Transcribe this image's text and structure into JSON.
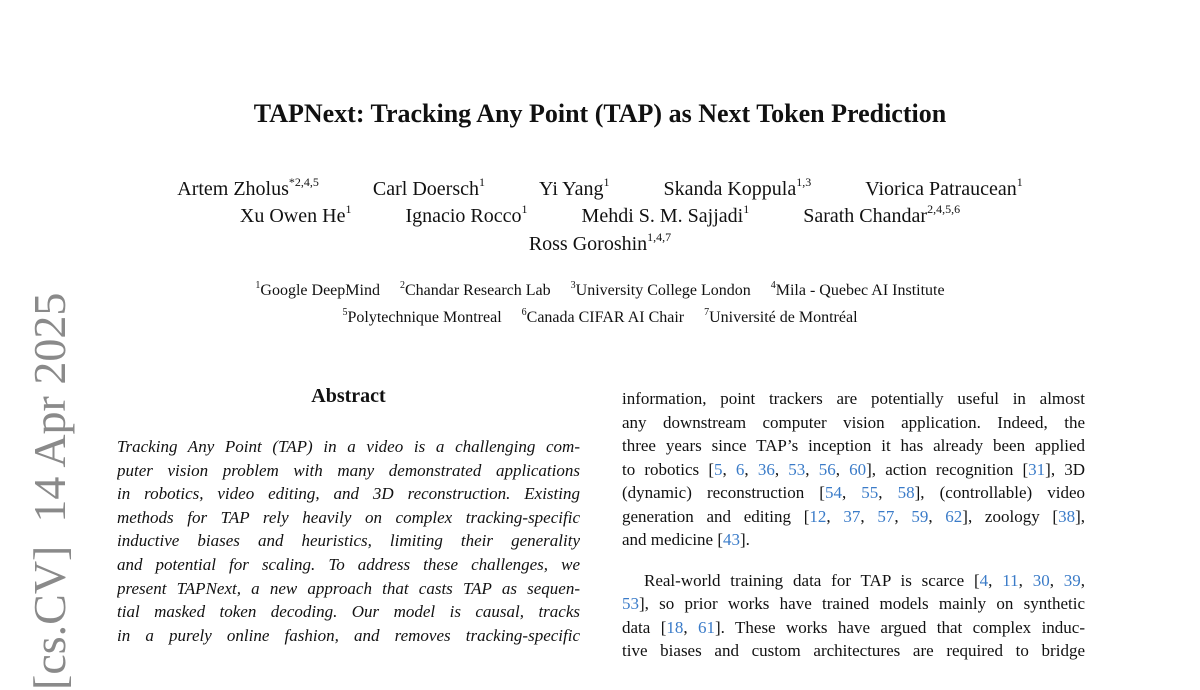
{
  "title": "TAPNext: Tracking Any Point (TAP) as Next Token Prediction",
  "authors": [
    [
      {
        "name": "Artem Zholus",
        "sup": "*2,4,5"
      },
      {
        "name": "Carl Doersch",
        "sup": "1"
      },
      {
        "name": "Yi Yang",
        "sup": "1"
      },
      {
        "name": "Skanda Koppula",
        "sup": "1,3"
      },
      {
        "name": "Viorica Patraucean",
        "sup": "1"
      }
    ],
    [
      {
        "name": "Xu Owen He",
        "sup": "1"
      },
      {
        "name": "Ignacio Rocco",
        "sup": "1"
      },
      {
        "name": "Mehdi S. M. Sajjadi",
        "sup": "1"
      },
      {
        "name": "Sarath Chandar",
        "sup": "2,4,5,6"
      }
    ],
    [
      {
        "name": "Ross Goroshin",
        "sup": "1,4,7"
      }
    ]
  ],
  "affiliations": [
    [
      {
        "sup": "1",
        "name": "Google DeepMind"
      },
      {
        "sup": "2",
        "name": "Chandar Research Lab"
      },
      {
        "sup": "3",
        "name": "University College London"
      },
      {
        "sup": "4",
        "name": "Mila - Quebec AI Institute"
      }
    ],
    [
      {
        "sup": "5",
        "name": "Polytechnique Montreal"
      },
      {
        "sup": "6",
        "name": "Canada CIFAR AI Chair"
      },
      {
        "sup": "7",
        "name": "Université de Montréal"
      }
    ]
  ],
  "arxiv_stamp": "[cs.CV]  14 Apr 2025",
  "abstract": {
    "heading": "Abstract",
    "lines": [
      [
        {
          "t": " Tracking Any Point (TAP) in a video is a challenging com-"
        }
      ],
      [
        {
          "t": "puter vision problem with many demonstrated applications"
        }
      ],
      [
        {
          "t": "in robotics, video editing, and 3D reconstruction. Existing"
        }
      ],
      [
        {
          "t": "methods for TAP rely heavily on complex tracking-specific"
        }
      ],
      [
        {
          "t": "inductive biases and heuristics, limiting their generality"
        }
      ],
      [
        {
          "t": "and potential for scaling. To address these challenges, we"
        }
      ],
      [
        {
          "t": "present TAPNext, a new approach that casts TAP as sequen-"
        }
      ],
      [
        {
          "t": "tial masked token decoding.  Our model is causal, tracks"
        }
      ],
      [
        {
          "t": "in a purely online fashion, and removes tracking-specific"
        }
      ]
    ]
  },
  "intro": {
    "lines": [
      [
        {
          "t": "information, point trackers are potentially useful in almost"
        }
      ],
      [
        {
          "t": "any downstream computer vision application. Indeed, the"
        }
      ],
      [
        {
          "t": "three years since TAP’s inception it has already been applied"
        }
      ],
      [
        {
          "t": "to robotics ["
        },
        {
          "t": "5",
          "c": true
        },
        {
          "t": ", "
        },
        {
          "t": "6",
          "c": true
        },
        {
          "t": ", "
        },
        {
          "t": "36",
          "c": true
        },
        {
          "t": ", "
        },
        {
          "t": "53",
          "c": true
        },
        {
          "t": ", "
        },
        {
          "t": "56",
          "c": true
        },
        {
          "t": ", "
        },
        {
          "t": "60",
          "c": true
        },
        {
          "t": "], action recognition ["
        },
        {
          "t": "31",
          "c": true
        },
        {
          "t": "], 3D"
        }
      ],
      [
        {
          "t": "(dynamic) reconstruction ["
        },
        {
          "t": "54",
          "c": true
        },
        {
          "t": ", "
        },
        {
          "t": "55",
          "c": true
        },
        {
          "t": ", "
        },
        {
          "t": "58",
          "c": true
        },
        {
          "t": "], (controllable) video"
        }
      ],
      [
        {
          "t": "generation and editing ["
        },
        {
          "t": "12",
          "c": true
        },
        {
          "t": ", "
        },
        {
          "t": "37",
          "c": true
        },
        {
          "t": ", "
        },
        {
          "t": "57",
          "c": true
        },
        {
          "t": ", "
        },
        {
          "t": "59",
          "c": true
        },
        {
          "t": ", "
        },
        {
          "t": "62",
          "c": true
        },
        {
          "t": "], zoology ["
        },
        {
          "t": "38",
          "c": true
        },
        {
          "t": "],"
        }
      ],
      [
        {
          "t": "and medicine ["
        },
        {
          "t": "43",
          "c": true
        },
        {
          "t": "]."
        }
      ],
      [
        {
          "t": "Real-world training data for TAP is scarce ["
        },
        {
          "t": "4",
          "c": true
        },
        {
          "t": ", "
        },
        {
          "t": "11",
          "c": true
        },
        {
          "t": ", "
        },
        {
          "t": "30",
          "c": true
        },
        {
          "t": ", "
        },
        {
          "t": "39",
          "c": true
        },
        {
          "t": ","
        }
      ],
      [
        {
          "t": ""
        },
        {
          "t": "53",
          "c": true
        },
        {
          "t": "], so prior works have trained models mainly on synthetic"
        }
      ],
      [
        {
          "t": "data  ["
        },
        {
          "t": "18",
          "c": true
        },
        {
          "t": ", "
        },
        {
          "t": "61",
          "c": true
        },
        {
          "t": "]. These works have argued that complex induc-"
        }
      ],
      [
        {
          "t": "tive biases and custom architectures are required to bridge"
        }
      ]
    ]
  },
  "colors": {
    "citation": "#3a7bc8",
    "stamp": "#8a8a8a"
  }
}
